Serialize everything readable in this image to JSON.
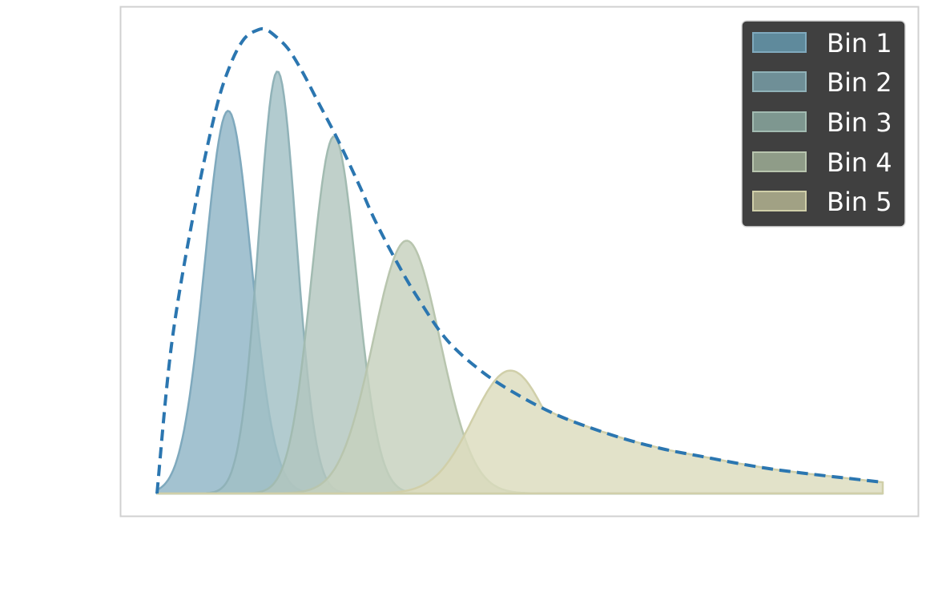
{
  "chart_data": {
    "type": "area",
    "title": "",
    "xlabel": "",
    "ylabel": "",
    "grid": false,
    "legend_position": "top-right",
    "xlim": [
      0,
      1
    ],
    "ylim": [
      0,
      1.05
    ],
    "envelope": {
      "style": "dashed",
      "color": "#2b76b0",
      "x": [
        0.0,
        0.02,
        0.05,
        0.08,
        0.1,
        0.12,
        0.14,
        0.15,
        0.16,
        0.18,
        0.2,
        0.22,
        0.25,
        0.28,
        0.3,
        0.33,
        0.36,
        0.4,
        0.45,
        0.5,
        0.55,
        0.6,
        0.65,
        0.7,
        0.75,
        0.8,
        0.85,
        0.9,
        0.95,
        1.0
      ],
      "y": [
        0.0,
        0.32,
        0.6,
        0.82,
        0.92,
        0.98,
        1.0,
        1.0,
        0.99,
        0.96,
        0.91,
        0.85,
        0.76,
        0.66,
        0.59,
        0.5,
        0.42,
        0.33,
        0.26,
        0.21,
        0.17,
        0.14,
        0.115,
        0.095,
        0.08,
        0.065,
        0.052,
        0.042,
        0.033,
        0.024
      ]
    },
    "series": [
      {
        "name": "Bin 1",
        "color": "#8fb4c6",
        "edge": "#7fa9bd",
        "center": 0.098,
        "amplitude": 0.825,
        "sigma": 0.032
      },
      {
        "name": "Bin 2",
        "color": "#a1bfc4",
        "edge": "#90b2b8",
        "center": 0.166,
        "amplitude": 0.91,
        "sigma": 0.026
      },
      {
        "name": "Bin 3",
        "color": "#b2c6be",
        "edge": "#a2bbb1",
        "center": 0.244,
        "amplitude": 0.77,
        "sigma": 0.031
      },
      {
        "name": "Bin 4",
        "color": "#c6d1bd",
        "edge": "#b8c5ae",
        "center": 0.344,
        "amplitude": 0.545,
        "sigma": 0.046
      },
      {
        "name": "Bin 5",
        "color": "#dcdcbd",
        "edge": "#d0cfa9",
        "center": 0.487,
        "amplitude": 0.265,
        "sigma": 0.052,
        "right_tail": true
      }
    ],
    "legend_swatches": [
      "#5f8a9c",
      "#6f8f97",
      "#7e9790",
      "#8f9c88",
      "#a1a184"
    ]
  }
}
